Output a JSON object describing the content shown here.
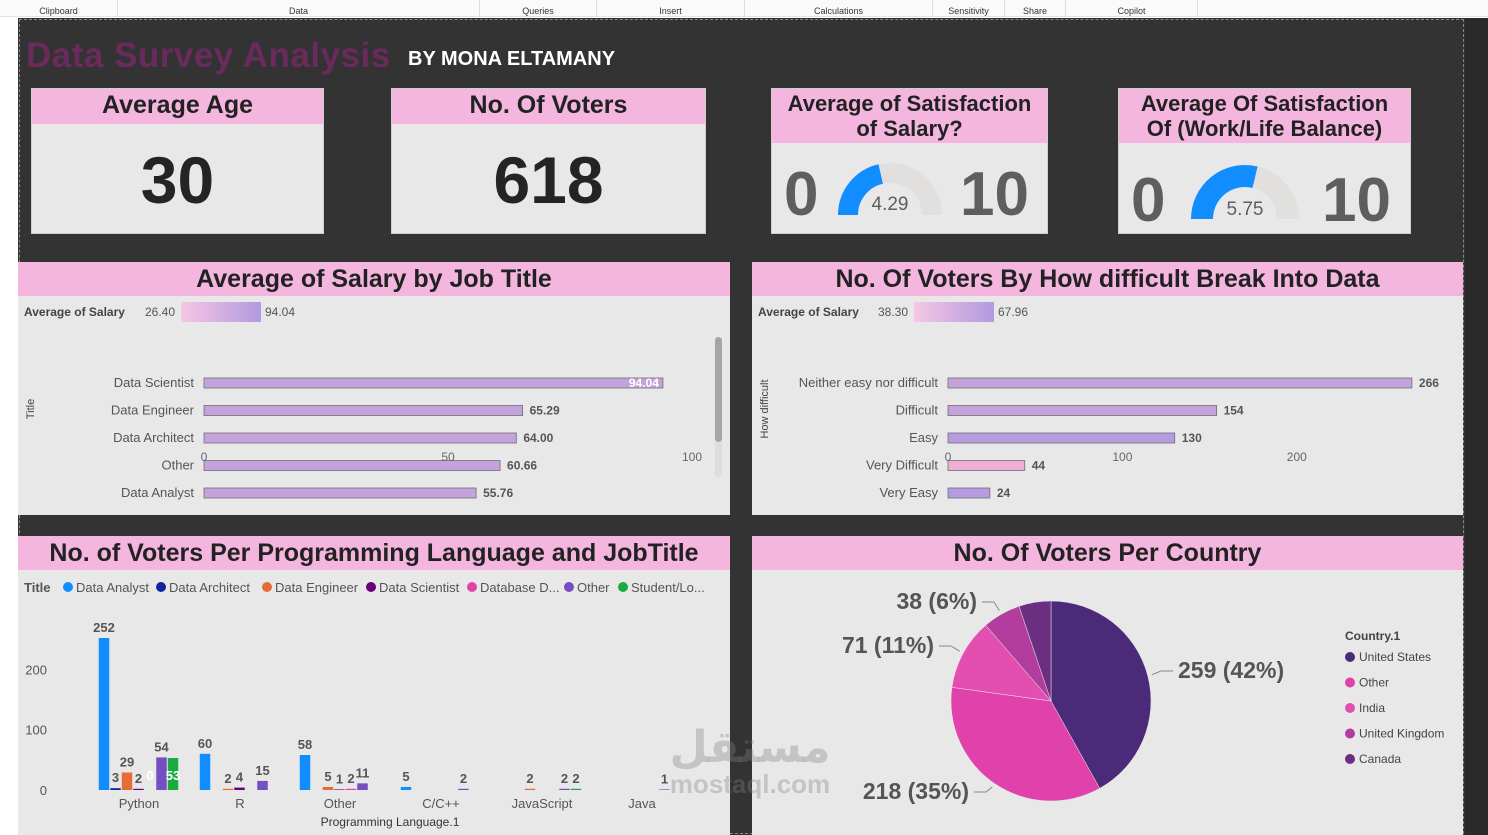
{
  "ribbon": [
    {
      "label": "Clipboard"
    },
    {
      "label": "Data"
    },
    {
      "label": "Queries"
    },
    {
      "label": "Insert"
    },
    {
      "label": "Calculations"
    },
    {
      "label": "Sensitivity"
    },
    {
      "label": "Share"
    },
    {
      "label": "Copilot"
    }
  ],
  "header": {
    "title": "Data Survey Analysis",
    "byline": "BY MONA ELTAMANY"
  },
  "kpis": {
    "avg_age": {
      "label": "Average Age",
      "value": "30"
    },
    "voters": {
      "label": "No. Of Voters",
      "value": "618"
    }
  },
  "gauges": {
    "salary": {
      "line1": "Average of Satisfaction",
      "line2": "of Salary?",
      "min": "0",
      "max": "10",
      "value": 4.29,
      "value_text": "4.29"
    },
    "worklife": {
      "line1": "Average Of Satisfaction",
      "line2": "Of (Work/Life Balance)",
      "min": "0",
      "max": "10",
      "value": 5.75,
      "value_text": "5.75"
    }
  },
  "colors": {
    "header_pink": "#f4b6de",
    "bar_purple": "#c4a3dc",
    "gauge_blue": "#118dff",
    "gauge_track": "#e1e0de",
    "dashboard_bg": "#333333"
  },
  "chart_data": [
    {
      "type": "bar",
      "title": "Average of Salary by Job Title",
      "legend_label": "Average of Salary",
      "legend_min": "26.40",
      "legend_max": "94.04",
      "ylabel": "Title",
      "categories": [
        "Data Scientist",
        "Data Engineer",
        "Data Architect",
        "Other",
        "Data Analyst"
      ],
      "values": [
        94.04,
        65.29,
        64.0,
        60.66,
        55.76
      ],
      "value_labels": [
        "94.04",
        "65.29",
        "64.00",
        "60.66",
        "55.76"
      ],
      "xlim": [
        0,
        100
      ],
      "xticks": [
        "0",
        "50",
        "100"
      ],
      "orientation": "horizontal"
    },
    {
      "type": "bar",
      "title": "No. Of Voters By How difficult Break Into Data",
      "legend_label": "Average of Salary",
      "legend_min": "38.30",
      "legend_max": "67.96",
      "ylabel": "How difficult",
      "categories": [
        "Neither easy nor difficult",
        "Difficult",
        "Easy",
        "Very Difficult",
        "Very Easy"
      ],
      "values": [
        266,
        154,
        130,
        44,
        24
      ],
      "value_labels": [
        "266",
        "154",
        "130",
        "44",
        "24"
      ],
      "bar_colors": [
        "#c4a3dc",
        "#c4a3dc",
        "#b79be0",
        "#f0b0d6",
        "#b79be0"
      ],
      "xlim": [
        0,
        250
      ],
      "xticks": [
        "0",
        "100",
        "200"
      ],
      "orientation": "horizontal"
    },
    {
      "type": "bar",
      "title": "No. of Voters Per Programming Language and JobTitle",
      "legend_title": "Title",
      "xlabel": "Programming Language.1",
      "ylim": [
        0,
        260
      ],
      "yticks": [
        "0",
        "100",
        "200"
      ],
      "categories": [
        "Python",
        "R",
        "Other",
        "C/C++",
        "JavaScript",
        "Java"
      ],
      "series": [
        {
          "name": "Data Analyst",
          "color": "#118dff",
          "values": [
            252,
            60,
            58,
            5,
            0,
            0
          ]
        },
        {
          "name": "Data Architect",
          "color": "#12239e",
          "values": [
            3,
            0,
            0,
            0,
            0,
            0
          ]
        },
        {
          "name": "Data Engineer",
          "color": "#e66c37",
          "values": [
            29,
            2,
            5,
            0,
            2,
            0
          ]
        },
        {
          "name": "Data Scientist",
          "color": "#6b007b",
          "values": [
            2,
            4,
            1,
            0,
            0,
            0
          ]
        },
        {
          "name": "Database D...",
          "color": "#e044a7",
          "values": [
            0,
            0,
            2,
            0,
            0,
            0
          ]
        },
        {
          "name": "Other",
          "color": "#744ec2",
          "values": [
            54,
            15,
            11,
            2,
            2,
            1
          ]
        },
        {
          "name": "Student/Lo...",
          "color": "#1aab40",
          "values": [
            53,
            0,
            0,
            0,
            2,
            0
          ]
        }
      ],
      "labels": [
        {
          "cat": 0,
          "series": 0,
          "text": "252"
        },
        {
          "cat": 0,
          "series": 1,
          "text": "3"
        },
        {
          "cat": 0,
          "series": 2,
          "text": "29"
        },
        {
          "cat": 0,
          "series": 3,
          "text": "2"
        },
        {
          "cat": 0,
          "series": 4,
          "text": "0"
        },
        {
          "cat": 0,
          "series": 5,
          "text": "54"
        },
        {
          "cat": 0,
          "series": 6,
          "text": "53"
        },
        {
          "cat": 1,
          "series": 0,
          "text": "60"
        },
        {
          "cat": 1,
          "series": 2,
          "text": "2"
        },
        {
          "cat": 1,
          "series": 3,
          "text": "4"
        },
        {
          "cat": 1,
          "series": 5,
          "text": "15"
        },
        {
          "cat": 2,
          "series": 0,
          "text": "58"
        },
        {
          "cat": 2,
          "series": 2,
          "text": "5"
        },
        {
          "cat": 2,
          "series": 3,
          "text": "1"
        },
        {
          "cat": 2,
          "series": 4,
          "text": "2"
        },
        {
          "cat": 2,
          "series": 5,
          "text": "11"
        },
        {
          "cat": 3,
          "series": 0,
          "text": "5"
        },
        {
          "cat": 3,
          "series": 5,
          "text": "2"
        },
        {
          "cat": 4,
          "series": 2,
          "text": "2"
        },
        {
          "cat": 4,
          "series": 5,
          "text": "2"
        },
        {
          "cat": 4,
          "series": 6,
          "text": "2"
        },
        {
          "cat": 5,
          "series": 5,
          "text": "1"
        }
      ]
    },
    {
      "type": "pie",
      "title": "No. Of Voters Per Country",
      "legend_title": "Country.1",
      "slices": [
        {
          "name": "United States",
          "value": 259,
          "label": "259 (42%)",
          "color": "#4b2a7a"
        },
        {
          "name": "Other",
          "value": 218,
          "label": "218 (35%)",
          "color": "#e041aa"
        },
        {
          "name": "India",
          "value": 71,
          "label": "71 (11%)",
          "color": "#e34fb0"
        },
        {
          "name": "United Kingdom",
          "value": 38,
          "label": "38 (6%)",
          "color": "#b33d9e"
        },
        {
          "name": "Canada",
          "value": 32,
          "label": "",
          "color": "#6a2f80"
        }
      ]
    }
  ],
  "watermark": {
    "line1": "مستقل",
    "line2": "mostaql.com"
  }
}
